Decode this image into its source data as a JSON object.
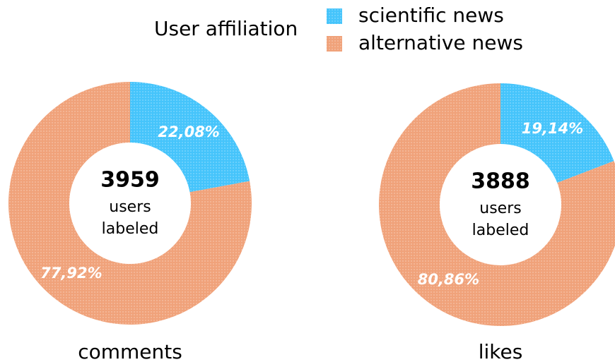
{
  "legend": {
    "title": "User affiliation",
    "categories": [
      "scientific news",
      "alternative news"
    ],
    "colors": [
      "#45c4fb",
      "#f0a27a"
    ]
  },
  "chart_data": [
    {
      "type": "pie",
      "donut": true,
      "values": [
        22.08,
        77.92
      ],
      "value_labels": [
        "22,08%",
        "77,92%"
      ],
      "center_value": 3959,
      "center_text": [
        "users",
        "labeled"
      ],
      "xlabel": "comments"
    },
    {
      "type": "pie",
      "donut": true,
      "values": [
        19.14,
        80.86
      ],
      "value_labels": [
        "19,14%",
        "80,86%"
      ],
      "center_value": 3888,
      "center_text": [
        "users",
        "labeled"
      ],
      "xlabel": "likes"
    }
  ]
}
